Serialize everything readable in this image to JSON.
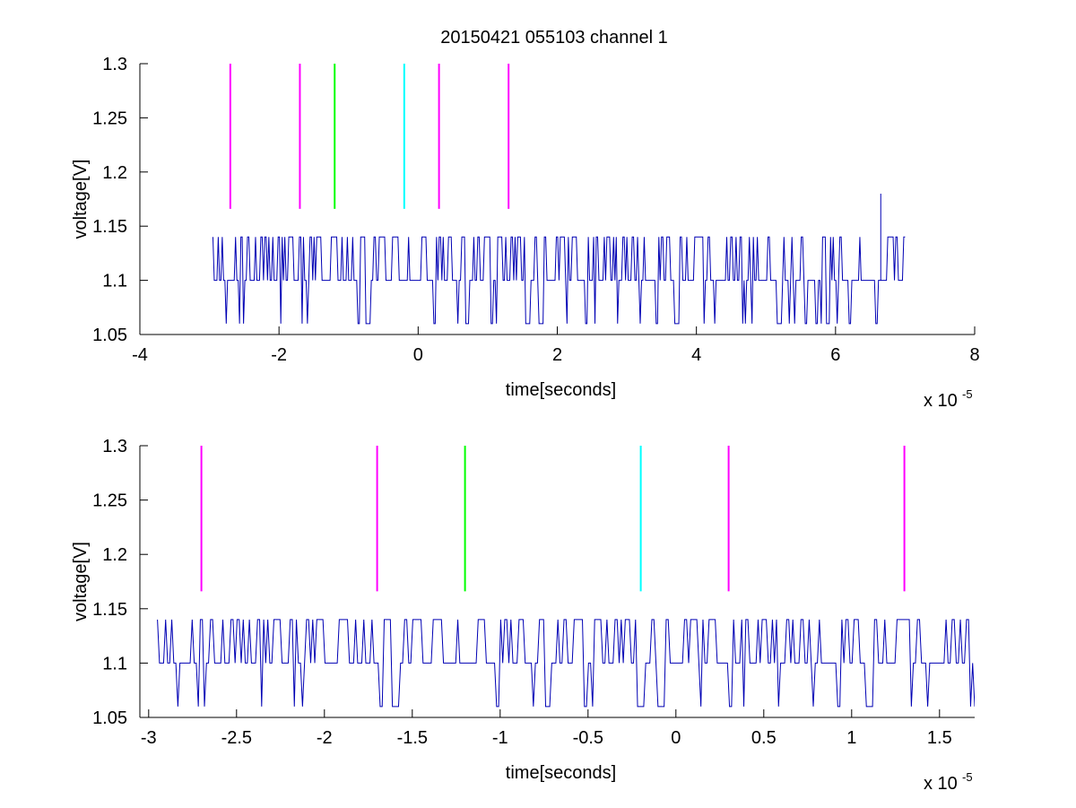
{
  "figure": {
    "title": "20150421 055103 channel 1"
  },
  "chart_data": [
    {
      "type": "line",
      "title": "20150421 055103 channel 1",
      "xlabel": "time[seconds]",
      "ylabel": "voltage[V]",
      "x_multiplier": "x 10",
      "x_multiplier_exp": "-5",
      "xlim": [
        -4,
        8
      ],
      "ylim": [
        1.05,
        1.3
      ],
      "x_ticks": [
        "-4",
        "-2",
        "0",
        "2",
        "4",
        "6",
        "8"
      ],
      "y_ticks": [
        "1.05",
        "1.1",
        "1.15",
        "1.2",
        "1.25",
        "1.3"
      ],
      "grid": false,
      "legend": "none",
      "signal_color": "#0000b4",
      "signal": {
        "x_start": -2.95,
        "x_end": 7.0,
        "baseline": 1.1,
        "levels": [
          1.06,
          1.1,
          1.14
        ],
        "spike": {
          "x": 6.65,
          "y": 1.18
        }
      },
      "markers": [
        {
          "x": -2.7,
          "color": "#ff00ff",
          "y_range": [
            1.166,
            1.3
          ]
        },
        {
          "x": -1.7,
          "color": "#ff00ff",
          "y_range": [
            1.166,
            1.3
          ]
        },
        {
          "x": -1.2,
          "color": "#00ff00",
          "y_range": [
            1.166,
            1.3
          ]
        },
        {
          "x": -0.2,
          "color": "#00ffff",
          "y_range": [
            1.166,
            1.3
          ]
        },
        {
          "x": 0.3,
          "color": "#ff00ff",
          "y_range": [
            1.166,
            1.3
          ]
        },
        {
          "x": 1.3,
          "color": "#ff00ff",
          "y_range": [
            1.166,
            1.3
          ]
        }
      ]
    },
    {
      "type": "line",
      "title": "",
      "xlabel": "time[seconds]",
      "ylabel": "voltage[V]",
      "x_multiplier": "x 10",
      "x_multiplier_exp": "-5",
      "xlim": [
        -3.05,
        1.7
      ],
      "ylim": [
        1.05,
        1.3
      ],
      "x_ticks": [
        "-3",
        "-2.5",
        "-2",
        "-1.5",
        "-1",
        "-0.5",
        "0",
        "0.5",
        "1",
        "1.5"
      ],
      "y_ticks": [
        "1.05",
        "1.1",
        "1.15",
        "1.2",
        "1.25",
        "1.3"
      ],
      "grid": false,
      "legend": "none",
      "signal_color": "#0000b4",
      "signal": {
        "x_start": -2.95,
        "x_end": 1.7,
        "baseline": 1.1,
        "levels": [
          1.06,
          1.1,
          1.14
        ]
      },
      "markers": [
        {
          "x": -2.7,
          "color": "#ff00ff",
          "y_range": [
            1.166,
            1.3
          ]
        },
        {
          "x": -1.7,
          "color": "#ff00ff",
          "y_range": [
            1.166,
            1.3
          ]
        },
        {
          "x": -1.2,
          "color": "#00ff00",
          "y_range": [
            1.166,
            1.3
          ]
        },
        {
          "x": -0.2,
          "color": "#00ffff",
          "y_range": [
            1.166,
            1.3
          ]
        },
        {
          "x": 0.3,
          "color": "#ff00ff",
          "y_range": [
            1.166,
            1.3
          ]
        },
        {
          "x": 1.3,
          "color": "#ff00ff",
          "y_range": [
            1.166,
            1.3
          ]
        }
      ]
    }
  ]
}
